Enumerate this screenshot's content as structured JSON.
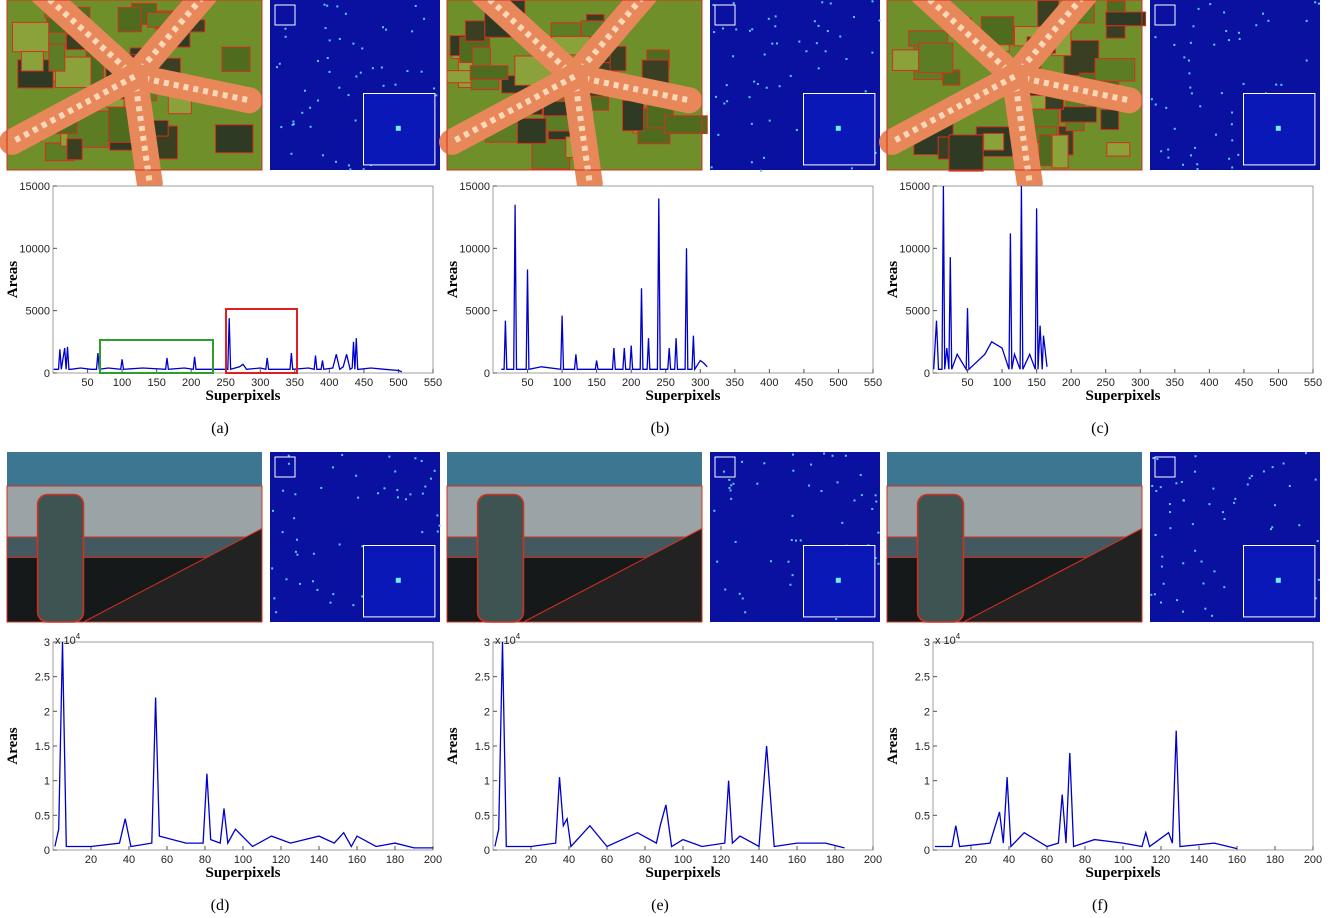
{
  "chart_data": [
    {
      "type": "line",
      "caption": "(a)",
      "x_label": "Superpixels",
      "y_label": "Areas",
      "color": "#0000cc",
      "xlim": [
        0,
        550
      ],
      "ylim": [
        0,
        15000
      ],
      "xticks": [
        50,
        100,
        150,
        200,
        250,
        300,
        350,
        400,
        450,
        500,
        550
      ],
      "yticks": [
        0,
        5000,
        10000,
        15000
      ],
      "x": [
        1,
        8,
        10,
        12,
        17,
        19,
        21,
        23,
        26,
        40,
        55,
        63,
        65,
        67,
        80,
        98,
        100,
        102,
        130,
        163,
        165,
        167,
        190,
        203,
        205,
        207,
        240,
        253,
        255,
        257,
        270,
        275,
        280,
        300,
        308,
        310,
        312,
        340,
        343,
        345,
        347,
        370,
        378,
        380,
        382,
        388,
        390,
        392,
        405,
        410,
        415,
        420,
        425,
        430,
        433,
        435,
        437,
        439,
        441,
        443,
        460,
        480,
        500,
        505
      ],
      "values": [
        300,
        300,
        1900,
        300,
        2000,
        300,
        2100,
        300,
        300,
        400,
        300,
        300,
        1600,
        300,
        400,
        300,
        1100,
        300,
        400,
        300,
        1200,
        300,
        400,
        300,
        1300,
        300,
        300,
        300,
        4400,
        300,
        500,
        700,
        300,
        400,
        300,
        1200,
        300,
        300,
        300,
        1600,
        300,
        400,
        300,
        1400,
        300,
        300,
        1000,
        300,
        400,
        1500,
        300,
        500,
        1500,
        300,
        400,
        2500,
        300,
        2800,
        300,
        300,
        400,
        300,
        200,
        100
      ]
    },
    {
      "type": "line",
      "caption": "(b)",
      "x_label": "Superpixels",
      "y_label": "Areas",
      "color": "#0000cc",
      "xlim": [
        0,
        550
      ],
      "ylim": [
        0,
        15000
      ],
      "xticks": [
        50,
        100,
        150,
        200,
        250,
        300,
        350,
        400,
        450,
        500,
        550
      ],
      "yticks": [
        0,
        5000,
        10000,
        15000
      ],
      "x": [
        12,
        16,
        18,
        20,
        30,
        32,
        34,
        48,
        50,
        52,
        70,
        98,
        100,
        102,
        118,
        120,
        122,
        148,
        150,
        152,
        173,
        175,
        177,
        188,
        190,
        192,
        198,
        200,
        202,
        213,
        215,
        217,
        223,
        225,
        227,
        238,
        240,
        242,
        253,
        255,
        257,
        263,
        265,
        267,
        278,
        280,
        282,
        288,
        290,
        292,
        300,
        305,
        310
      ],
      "values": [
        300,
        300,
        4200,
        300,
        300,
        13500,
        300,
        300,
        8300,
        300,
        500,
        300,
        4600,
        300,
        300,
        1500,
        300,
        300,
        1000,
        300,
        300,
        2000,
        300,
        300,
        2000,
        300,
        300,
        2200,
        300,
        300,
        6800,
        300,
        300,
        2800,
        300,
        300,
        14000,
        300,
        300,
        2000,
        300,
        300,
        2800,
        300,
        300,
        10000,
        300,
        300,
        3000,
        300,
        1000,
        800,
        500
      ]
    },
    {
      "type": "line",
      "caption": "(c)",
      "x_label": "Superpixels",
      "y_label": "Areas",
      "color": "#0000cc",
      "xlim": [
        0,
        550
      ],
      "ylim": [
        0,
        15000
      ],
      "xticks": [
        50,
        100,
        150,
        200,
        250,
        300,
        350,
        400,
        450,
        500,
        550
      ],
      "yticks": [
        0,
        5000,
        10000,
        15000
      ],
      "x": [
        1,
        5,
        8,
        13,
        15,
        17,
        20,
        23,
        25,
        27,
        35,
        48,
        50,
        52,
        75,
        85,
        100,
        110,
        112,
        114,
        118,
        126,
        128,
        130,
        140,
        148,
        150,
        152,
        155,
        158,
        160,
        165
      ],
      "values": [
        300,
        4200,
        300,
        300,
        15000,
        300,
        2000,
        300,
        9300,
        300,
        1500,
        300,
        5200,
        300,
        1500,
        2500,
        2000,
        300,
        11200,
        300,
        1500,
        300,
        15000,
        300,
        1500,
        300,
        13200,
        300,
        3800,
        300,
        3000,
        500
      ]
    },
    {
      "type": "line",
      "caption": "(d)",
      "x_label": "Superpixels",
      "y_label": "Areas",
      "color": "#0000cc",
      "y_scale": {
        "base": "x 10",
        "exponent": "4"
      },
      "xlim": [
        0,
        200
      ],
      "ylim": [
        0,
        3
      ],
      "xticks": [
        20,
        40,
        60,
        80,
        100,
        120,
        140,
        160,
        180,
        200
      ],
      "yticks": [
        0,
        0.5,
        1,
        1.5,
        2,
        2.5,
        3
      ],
      "x": [
        1,
        3,
        5,
        7,
        20,
        35,
        38,
        41,
        52,
        54,
        56,
        70,
        79,
        81,
        83,
        88,
        90,
        92,
        96,
        105,
        115,
        125,
        140,
        148,
        153,
        157,
        160,
        170,
        180,
        190,
        200
      ],
      "values": [
        0.05,
        0.3,
        3.0,
        0.05,
        0.05,
        0.1,
        0.45,
        0.05,
        0.1,
        2.2,
        0.2,
        0.1,
        0.1,
        1.1,
        0.15,
        0.1,
        0.6,
        0.1,
        0.3,
        0.05,
        0.2,
        0.1,
        0.2,
        0.1,
        0.25,
        0.05,
        0.2,
        0.05,
        0.1,
        0.03,
        0.03
      ]
    },
    {
      "type": "line",
      "caption": "(e)",
      "x_label": "Superpixels",
      "y_label": "Areas",
      "color": "#0000cc",
      "y_scale": {
        "base": "x 10",
        "exponent": "4"
      },
      "xlim": [
        0,
        200
      ],
      "ylim": [
        0,
        3
      ],
      "xticks": [
        20,
        40,
        60,
        80,
        100,
        120,
        140,
        160,
        180,
        200
      ],
      "yticks": [
        0,
        0.5,
        1,
        1.5,
        2,
        2.5,
        3
      ],
      "x": [
        1,
        3,
        5,
        7,
        20,
        33,
        35,
        37,
        39,
        41,
        51,
        60,
        76,
        86,
        88,
        91,
        94,
        100,
        110,
        122,
        124,
        126,
        130,
        140,
        144,
        148,
        160,
        175,
        185
      ],
      "values": [
        0.05,
        0.3,
        3.0,
        0.05,
        0.05,
        0.1,
        1.05,
        0.35,
        0.45,
        0.05,
        0.35,
        0.05,
        0.25,
        0.1,
        0.35,
        0.65,
        0.05,
        0.15,
        0.05,
        0.1,
        1.0,
        0.1,
        0.2,
        0.05,
        1.5,
        0.05,
        0.1,
        0.1,
        0.03
      ]
    },
    {
      "type": "line",
      "caption": "(f)",
      "x_label": "Superpixels",
      "y_label": "Areas",
      "color": "#0000cc",
      "y_scale": {
        "base": "x 10",
        "exponent": "4"
      },
      "xlim": [
        0,
        200
      ],
      "ylim": [
        0,
        3
      ],
      "xticks": [
        20,
        40,
        60,
        80,
        100,
        120,
        140,
        160,
        180,
        200
      ],
      "yticks": [
        0,
        0.5,
        1,
        1.5,
        2,
        2.5,
        3
      ],
      "x": [
        1,
        10,
        12,
        14,
        30,
        35,
        37,
        39,
        41,
        48,
        60,
        66,
        68,
        70,
        72,
        74,
        85,
        100,
        110,
        112,
        114,
        124,
        126,
        128,
        130,
        148,
        160
      ],
      "values": [
        0.05,
        0.05,
        0.35,
        0.05,
        0.1,
        0.55,
        0.1,
        1.05,
        0.05,
        0.25,
        0.05,
        0.1,
        0.8,
        0.1,
        1.4,
        0.05,
        0.15,
        0.1,
        0.05,
        0.25,
        0.05,
        0.25,
        0.1,
        1.72,
        0.05,
        0.1,
        0.02
      ]
    }
  ]
}
